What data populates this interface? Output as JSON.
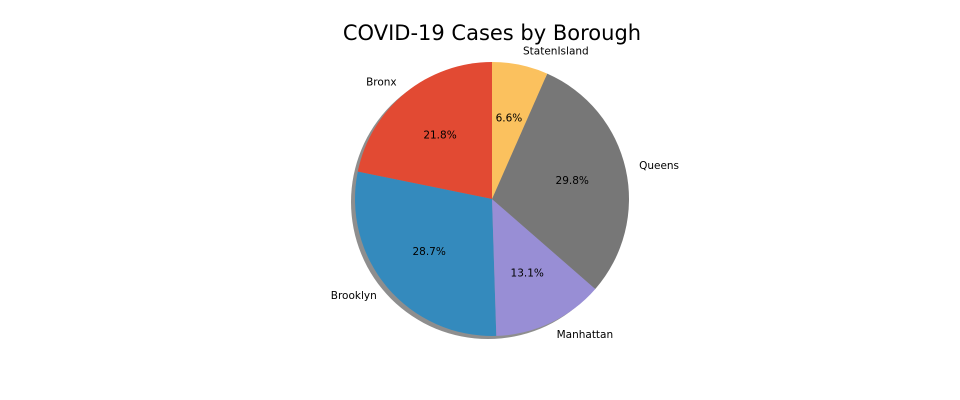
{
  "chart_data": {
    "type": "pie",
    "title": "COVID-19 Cases by Borough",
    "labels": [
      "Bronx",
      "Brooklyn",
      "Manhattan",
      "Queens",
      "StatenIsland"
    ],
    "values": [
      21.8,
      28.7,
      13.1,
      29.8,
      6.6
    ],
    "value_labels": [
      "21.8%",
      "28.7%",
      "13.1%",
      "29.8%",
      "6.6%"
    ],
    "colors": [
      "#E24A33",
      "#348ABD",
      "#988ED5",
      "#777777",
      "#FBC15E"
    ],
    "start_angle_deg": 90,
    "direction": "counterclockwise",
    "shadow": true,
    "legend": "none"
  }
}
